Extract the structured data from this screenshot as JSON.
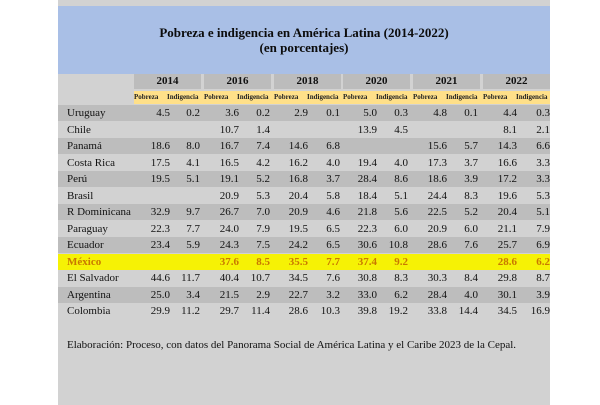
{
  "title": {
    "line1": "Pobreza e indigencia en América Latina (2014-2022)",
    "line2": "(en porcentajes)"
  },
  "columns": {
    "years": [
      "2014",
      "2016",
      "2018",
      "2020",
      "2021",
      "2022"
    ],
    "sub": [
      "Pobreza",
      "Indigencia"
    ]
  },
  "rows": [
    {
      "country": "Uruguay",
      "values": [
        "4.5",
        "0.2",
        "3.6",
        "0.2",
        "2.9",
        "0.1",
        "5.0",
        "0.3",
        "4.8",
        "0.1",
        "4.4",
        "0.3"
      ],
      "style": "shade"
    },
    {
      "country": "Chile",
      "values": [
        "",
        "",
        "10.7",
        "1.4",
        "",
        "",
        "13.9",
        "4.5",
        "",
        "",
        "8.1",
        "2.1"
      ],
      "style": "plain"
    },
    {
      "country": "Panamá",
      "values": [
        "18.6",
        "8.0",
        "16.7",
        "7.4",
        "14.6",
        "6.8",
        "",
        "",
        "15.6",
        "5.7",
        "14.3",
        "6.6"
      ],
      "style": "shade"
    },
    {
      "country": "Costa Rica",
      "values": [
        "17.5",
        "4.1",
        "16.5",
        "4.2",
        "16.2",
        "4.0",
        "19.4",
        "4.0",
        "17.3",
        "3.7",
        "16.6",
        "3.3"
      ],
      "style": "plain"
    },
    {
      "country": "Perú",
      "values": [
        "19.5",
        "5.1",
        "19.1",
        "5.2",
        "16.8",
        "3.7",
        "28.4",
        "8.6",
        "18.6",
        "3.9",
        "17.2",
        "3.3"
      ],
      "style": "shade"
    },
    {
      "country": "Brasil",
      "values": [
        "",
        "",
        "20.9",
        "5.3",
        "20.4",
        "5.8",
        "18.4",
        "5.1",
        "24.4",
        "8.3",
        "19.6",
        "5.3"
      ],
      "style": "plain"
    },
    {
      "country": "R Dominicana",
      "values": [
        "32.9",
        "9.7",
        "26.7",
        "7.0",
        "20.9",
        "4.6",
        "21.8",
        "5.6",
        "22.5",
        "5.2",
        "20.4",
        "5.1"
      ],
      "style": "shade"
    },
    {
      "country": "Paraguay",
      "values": [
        "22.3",
        "7.7",
        "24.0",
        "7.9",
        "19.5",
        "6.5",
        "22.3",
        "6.0",
        "20.9",
        "6.0",
        "21.1",
        "7.9"
      ],
      "style": "plain"
    },
    {
      "country": "Ecuador",
      "values": [
        "23.4",
        "5.9",
        "24.3",
        "7.5",
        "24.2",
        "6.5",
        "30.6",
        "10.8",
        "28.6",
        "7.6",
        "25.7",
        "6.9"
      ],
      "style": "shade"
    },
    {
      "country": "México",
      "values": [
        "",
        "",
        "37.6",
        "8.5",
        "35.5",
        "7.7",
        "37.4",
        "9.2",
        "",
        "",
        "28.6",
        "6.2"
      ],
      "style": "hl"
    },
    {
      "country": "El Salvador",
      "values": [
        "44.6",
        "11.7",
        "40.4",
        "10.7",
        "34.5",
        "7.6",
        "30.8",
        "8.3",
        "30.3",
        "8.4",
        "29.8",
        "8.7"
      ],
      "style": "plain"
    },
    {
      "country": "Argentina",
      "values": [
        "25.0",
        "3.4",
        "21.5",
        "2.9",
        "22.7",
        "3.2",
        "33.0",
        "6.2",
        "28.4",
        "4.0",
        "30.1",
        "3.9"
      ],
      "style": "shade"
    },
    {
      "country": "Colombia",
      "values": [
        "29.9",
        "11.2",
        "29.7",
        "11.4",
        "28.6",
        "10.3",
        "39.8",
        "19.2",
        "33.8",
        "14.4",
        "34.5",
        "16.9"
      ],
      "style": "plain"
    }
  ],
  "footnote": "Elaboración: Proceso, con datos del Panorama Social de América Latina y el Caribe 2023 de la Cepal."
}
